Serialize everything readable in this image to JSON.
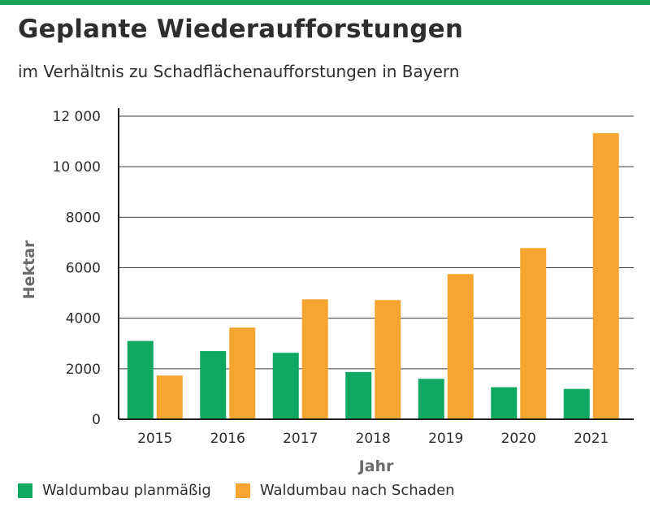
{
  "header": {
    "title": "Geplante Wiederaufforstungen",
    "subtitle": "im Verhältnis zu Schadflächenaufforstungen in Bayern"
  },
  "colors": {
    "accent_bar": "#1aa35a",
    "series_green": "#0fa862",
    "series_orange": "#f6a530",
    "axis_label": "#6b6b6b"
  },
  "chart_data": {
    "type": "bar",
    "categories": [
      "2015",
      "2016",
      "2017",
      "2018",
      "2019",
      "2020",
      "2021"
    ],
    "series": [
      {
        "name": "Waldumbau planmäßig",
        "color": "#0fa862",
        "values": [
          3100,
          2700,
          2630,
          1870,
          1600,
          1270,
          1200
        ]
      },
      {
        "name": "Waldumbau nach Schaden",
        "color": "#f6a530",
        "values": [
          1730,
          3630,
          4750,
          4720,
          5750,
          6780,
          11330
        ]
      }
    ],
    "xlabel": "Jahr",
    "ylabel": "Hektar",
    "ylim": [
      0,
      12000
    ],
    "yticks": [
      0,
      2000,
      4000,
      6000,
      8000,
      10000,
      12000
    ],
    "ytick_labels": [
      "0",
      "2000",
      "4000",
      "6000",
      "8000",
      "10 000",
      "12 000"
    ],
    "grid": true,
    "legend_position": "bottom-left"
  }
}
